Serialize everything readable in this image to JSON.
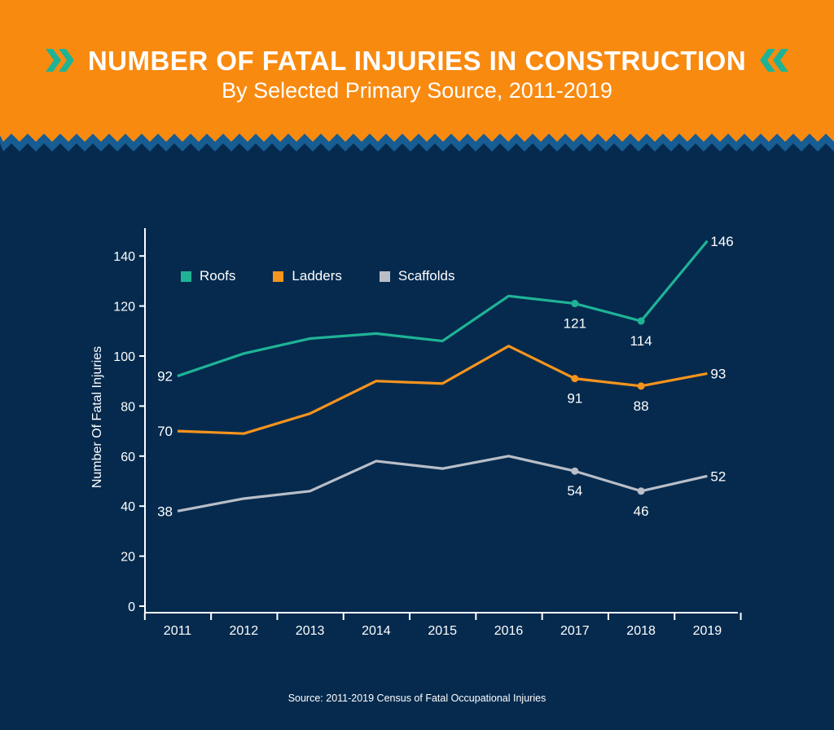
{
  "header": {
    "title": "NUMBER OF FATAL INJURIES IN CONSTRUCTION",
    "subtitle": "By Selected Primary Source, 2011-2019"
  },
  "footer": {
    "source": "Source: 2011-2019 Census of Fatal Occupational Injuries"
  },
  "colors": {
    "banner": "#f98a10",
    "background": "#052a4e",
    "zigzag": "#175c92",
    "chevron": "#1fb396",
    "roofs": "#1fb396",
    "ladders": "#f7941d",
    "scaffolds": "#b9bec8",
    "axis": "#ffffff"
  },
  "icons": [
    "chevron-right-double-icon",
    "chevron-left-double-icon"
  ],
  "chart_data": {
    "type": "line",
    "title": "",
    "xlabel": "",
    "ylabel": "Number Of Fatal Injuries",
    "x": [
      "2011",
      "2012",
      "2013",
      "2014",
      "2015",
      "2016",
      "2017",
      "2018",
      "2019"
    ],
    "ylim": [
      0,
      155
    ],
    "yticks": [
      0,
      20,
      40,
      60,
      80,
      100,
      120,
      140
    ],
    "grid": false,
    "legend_position": "top-left",
    "series": [
      {
        "name": "Roofs",
        "color": "#1fb396",
        "values": [
          92,
          101,
          107,
          109,
          106,
          124,
          121,
          114,
          146
        ],
        "labels": [
          {
            "index": 0,
            "text": "92",
            "position": "left"
          },
          {
            "index": 6,
            "text": "121",
            "position": "below",
            "marker": true
          },
          {
            "index": 7,
            "text": "114",
            "position": "below",
            "marker": true
          },
          {
            "index": 8,
            "text": "146",
            "position": "right"
          }
        ]
      },
      {
        "name": "Ladders",
        "color": "#f7941d",
        "values": [
          70,
          69,
          77,
          90,
          89,
          104,
          91,
          88,
          93
        ],
        "labels": [
          {
            "index": 0,
            "text": "70",
            "position": "left"
          },
          {
            "index": 6,
            "text": "91",
            "position": "below",
            "marker": true
          },
          {
            "index": 7,
            "text": "88",
            "position": "below",
            "marker": true
          },
          {
            "index": 8,
            "text": "93",
            "position": "right"
          }
        ]
      },
      {
        "name": "Scaffolds",
        "color": "#b9bec8",
        "values": [
          38,
          43,
          46,
          58,
          55,
          60,
          54,
          46,
          52
        ],
        "labels": [
          {
            "index": 0,
            "text": "38",
            "position": "left"
          },
          {
            "index": 6,
            "text": "54",
            "position": "below",
            "marker": true
          },
          {
            "index": 7,
            "text": "46",
            "position": "below",
            "marker": true
          },
          {
            "index": 8,
            "text": "52",
            "position": "right"
          }
        ]
      }
    ]
  }
}
